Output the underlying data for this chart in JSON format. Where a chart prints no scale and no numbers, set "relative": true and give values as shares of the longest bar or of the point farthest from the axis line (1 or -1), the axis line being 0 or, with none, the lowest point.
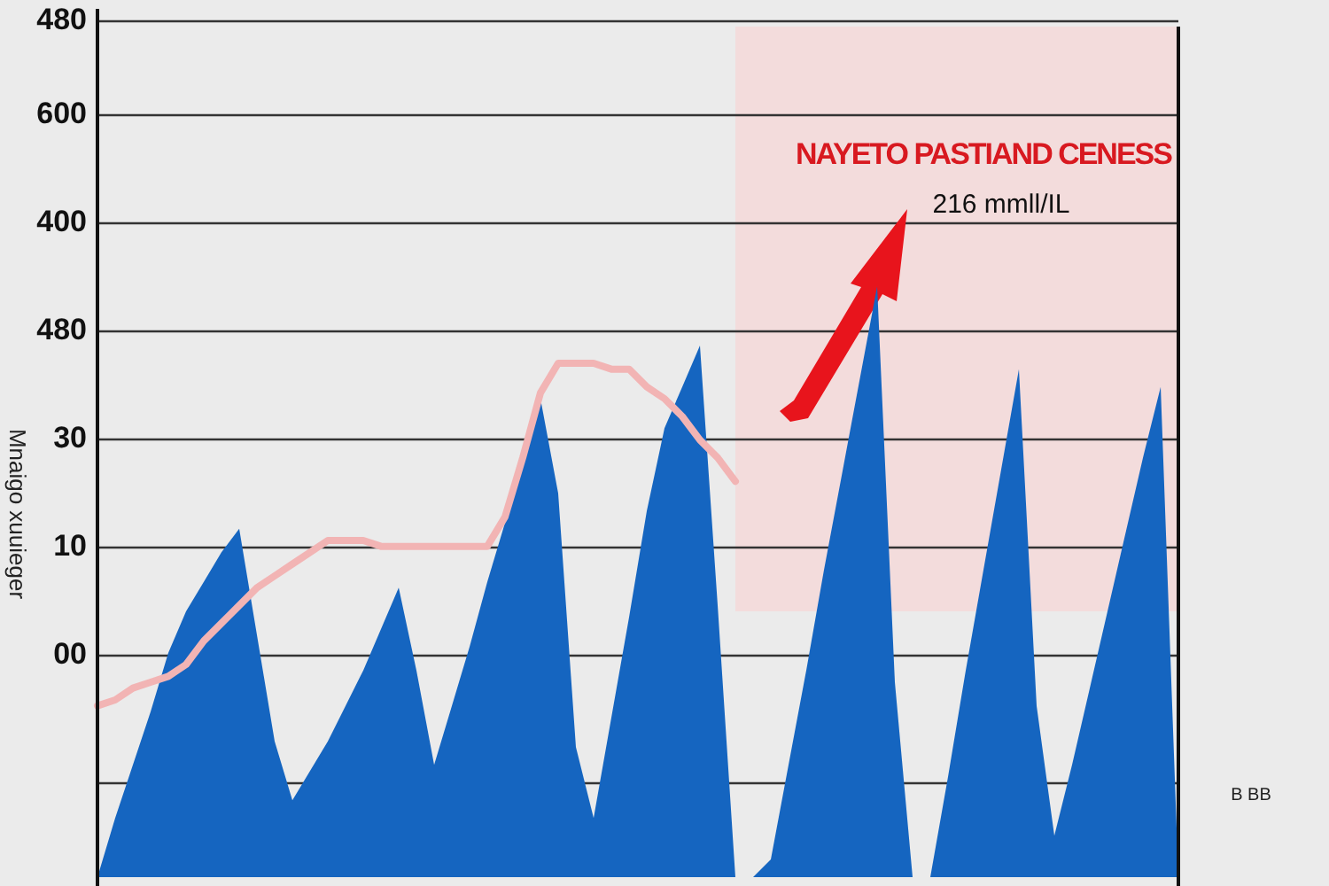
{
  "chart_data": {
    "type": "area",
    "ylabel": "Mnaigo xuuieger",
    "relative": true,
    "categories": [
      null,
      null,
      null,
      null,
      null,
      null,
      null,
      null,
      null,
      null,
      null,
      null,
      null,
      null,
      null,
      null,
      null,
      null,
      null,
      null,
      null,
      null,
      null,
      null,
      null,
      null,
      null,
      null,
      null,
      null,
      null,
      null,
      null,
      null,
      null,
      null,
      null,
      null,
      null,
      null,
      null,
      null,
      null,
      null,
      null,
      null,
      null,
      null,
      null,
      null,
      null,
      null,
      null,
      null,
      null,
      null,
      null,
      null,
      null,
      null,
      null,
      null
    ],
    "series": [
      {
        "color": "#1565c0",
        "values": [
          0,
          0.1,
          0.19,
          0.28,
          0.38,
          0.45,
          0.5,
          0.55,
          0.59,
          0.41,
          0.23,
          0.13,
          0.18,
          0.23,
          0.29,
          0.35,
          0.42,
          0.49,
          0.35,
          0.19,
          0.29,
          0.39,
          0.5,
          0.6,
          0.7,
          0.81,
          0.65,
          0.22,
          0.1,
          0.27,
          0.44,
          0.62,
          0.76,
          0.83,
          0.9,
          0.46,
          0,
          0,
          0.03,
          0.19,
          0.35,
          0.52,
          0.68,
          0.84,
          1,
          0.33,
          0,
          0,
          0.17,
          0.35,
          0.52,
          0.69,
          0.86,
          0.29,
          0.07,
          0.19,
          0.32,
          0.45,
          0.58,
          0.71,
          0.83,
          0
        ]
      },
      {
        "type": "line",
        "color": "#f2b4b4",
        "values": [
          0.29,
          0.3,
          0.32,
          0.33,
          0.34,
          0.36,
          0.4,
          0.43,
          0.46,
          0.49,
          0.51,
          0.53,
          0.55,
          0.57,
          0.57,
          0.57,
          0.56,
          0.56,
          0.56,
          0.56,
          0.56,
          0.56,
          0.56,
          0.61,
          0.71,
          0.82,
          0.87,
          0.87,
          0.87,
          0.86,
          0.86,
          0.83,
          0.81,
          0.78,
          0.74,
          0.71,
          0.67,
          null,
          null,
          null,
          null,
          null,
          null,
          null,
          null,
          null,
          null,
          null,
          null,
          null,
          null,
          null,
          null,
          null,
          null,
          null,
          null,
          null,
          null,
          null,
          null,
          null
        ]
      }
    ],
    "grid": true,
    "marker": "none",
    "annotations": [
      "480",
      "600",
      "400",
      "480",
      "30",
      "10",
      "00",
      "NAYETO PASTIAND CENESS",
      "216 mmll/IL",
      "B BB"
    ]
  }
}
